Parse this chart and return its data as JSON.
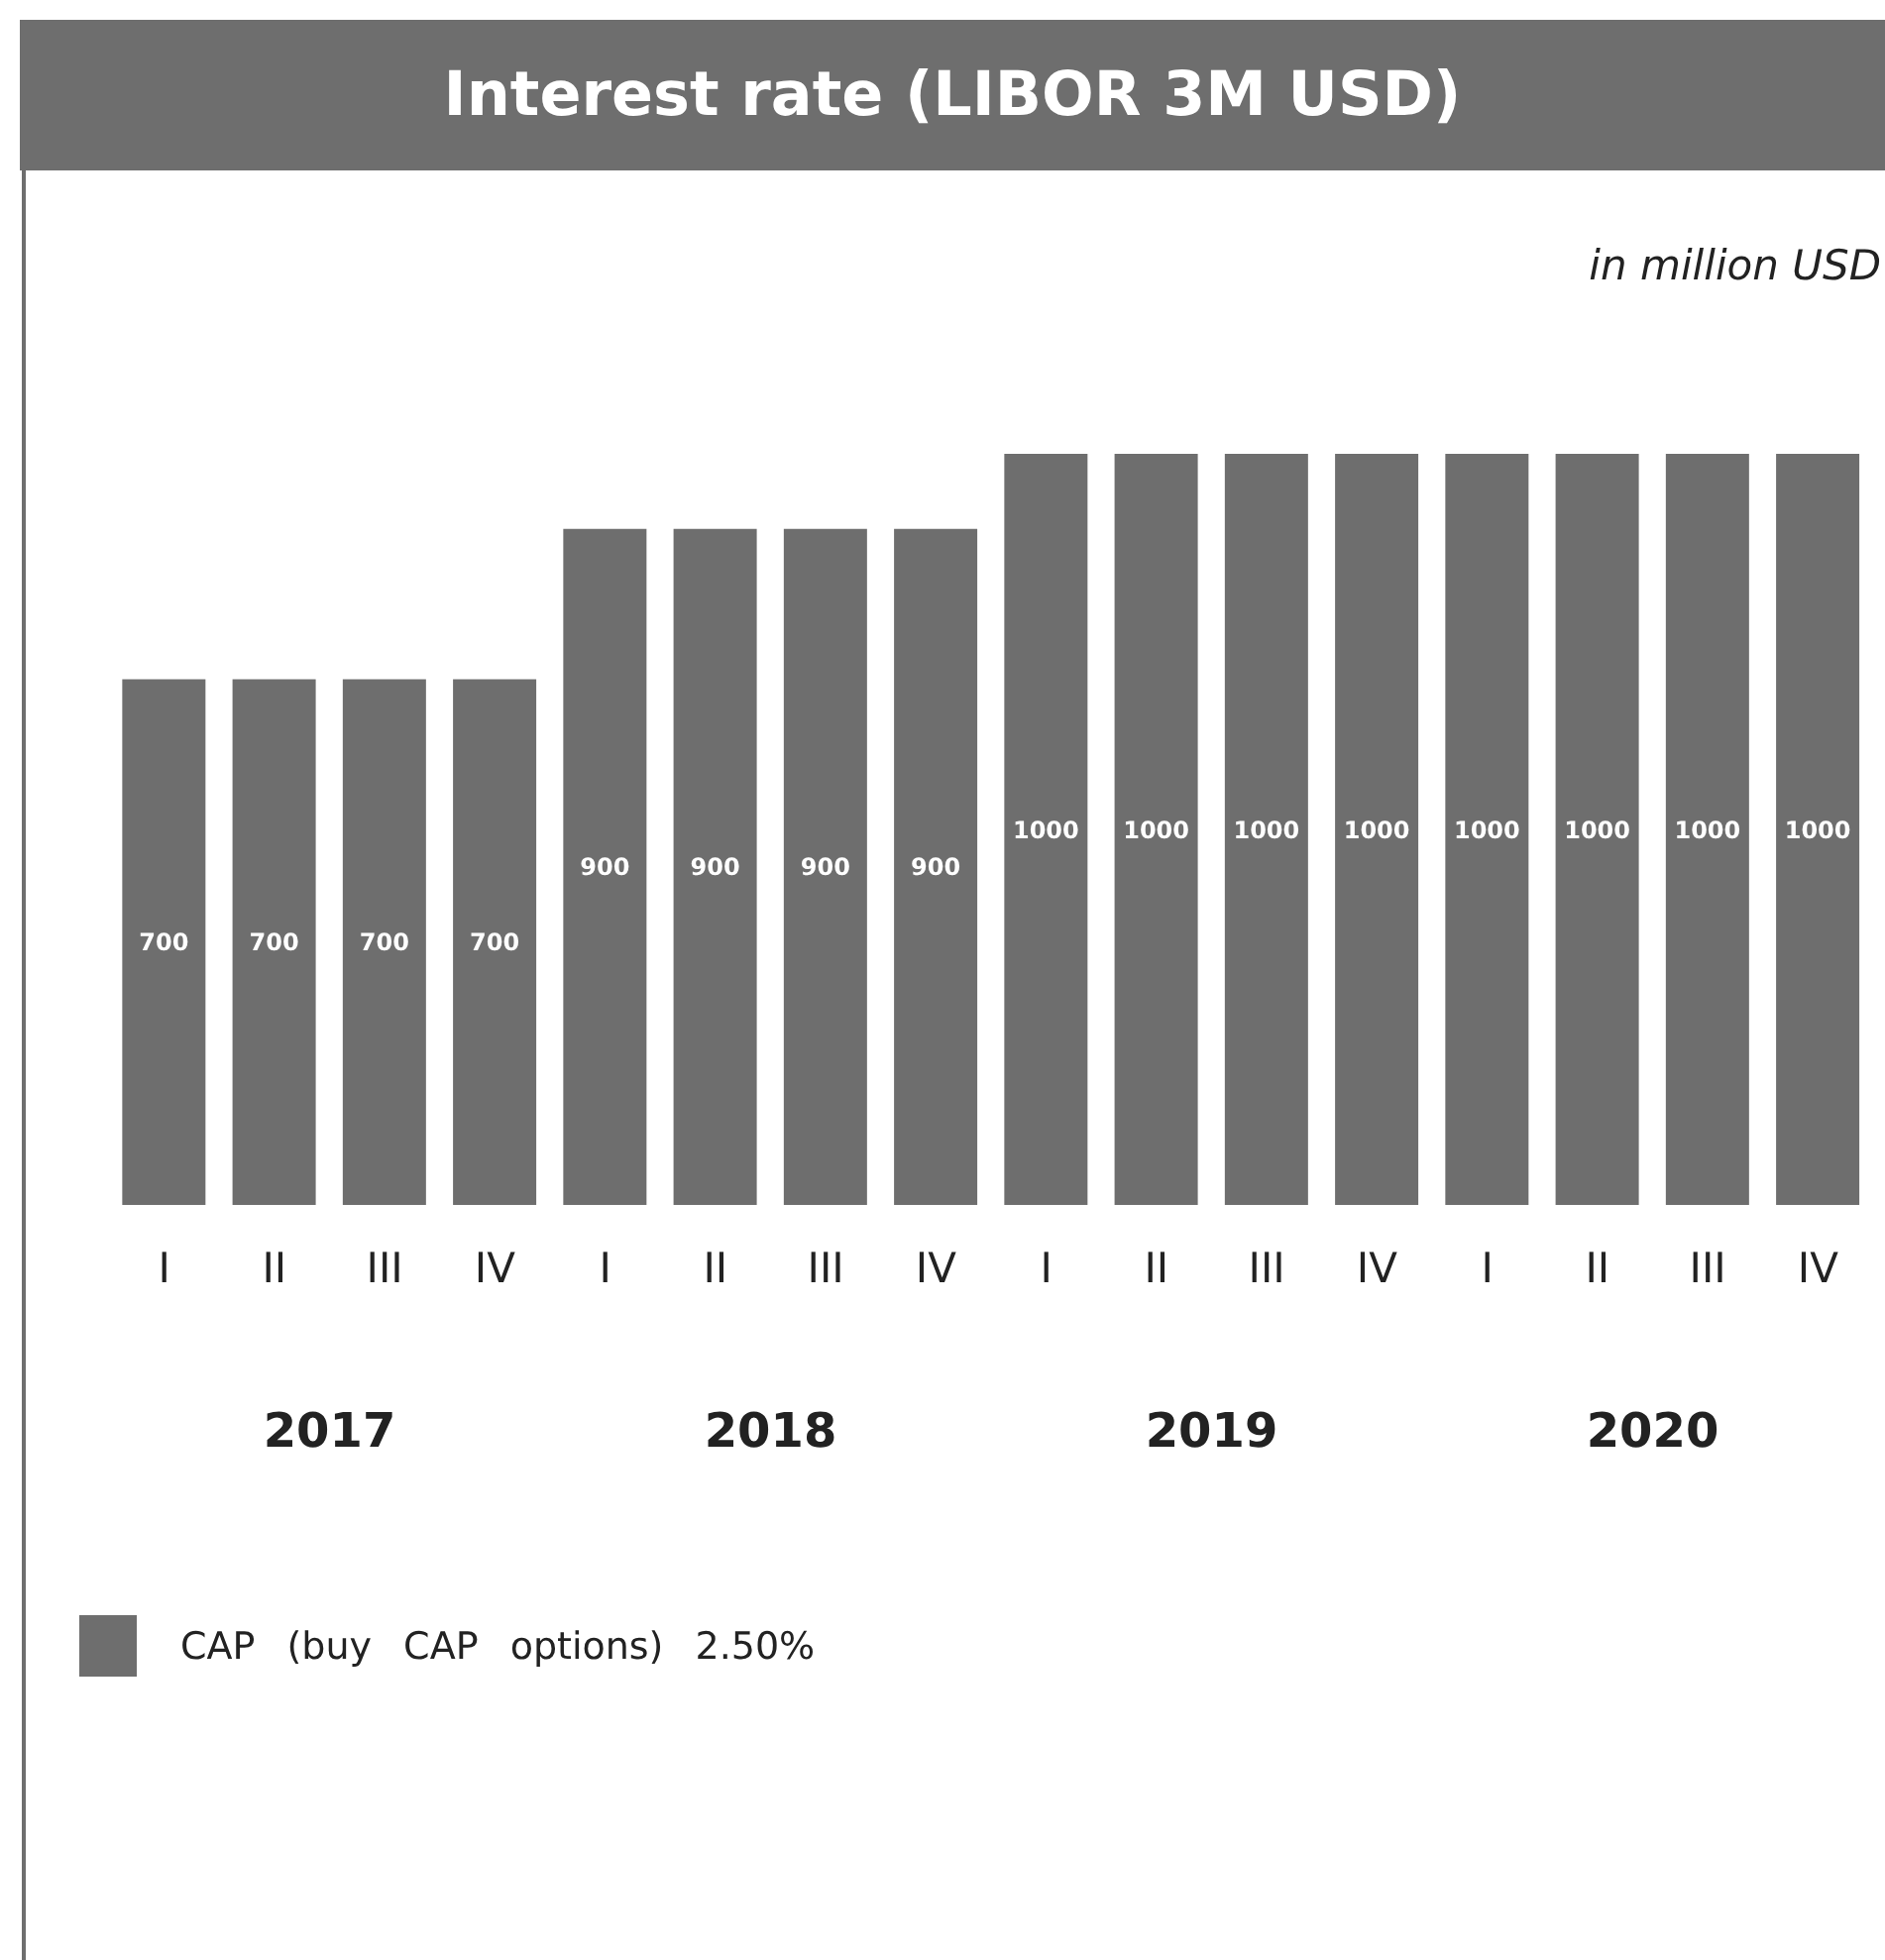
{
  "chart_data": {
    "type": "bar",
    "title": "Interest rate (LIBOR 3M USD)",
    "subtitle": "in million USD",
    "categories": [
      "I",
      "II",
      "III",
      "IV",
      "I",
      "II",
      "III",
      "IV",
      "I",
      "II",
      "III",
      "IV",
      "I",
      "II",
      "III",
      "IV"
    ],
    "series": [
      {
        "name": "CAP (buy CAP options) 2.50%",
        "color": "#6e6e6e",
        "values": [
          700,
          700,
          700,
          700,
          900,
          900,
          900,
          900,
          1000,
          1000,
          1000,
          1000,
          1000,
          1000,
          1000,
          1000
        ]
      }
    ],
    "annotations": [
      "2017",
      "2018",
      "2019",
      "2020"
    ],
    "data_labels": true,
    "legend": "bottom left",
    "grid": false
  }
}
